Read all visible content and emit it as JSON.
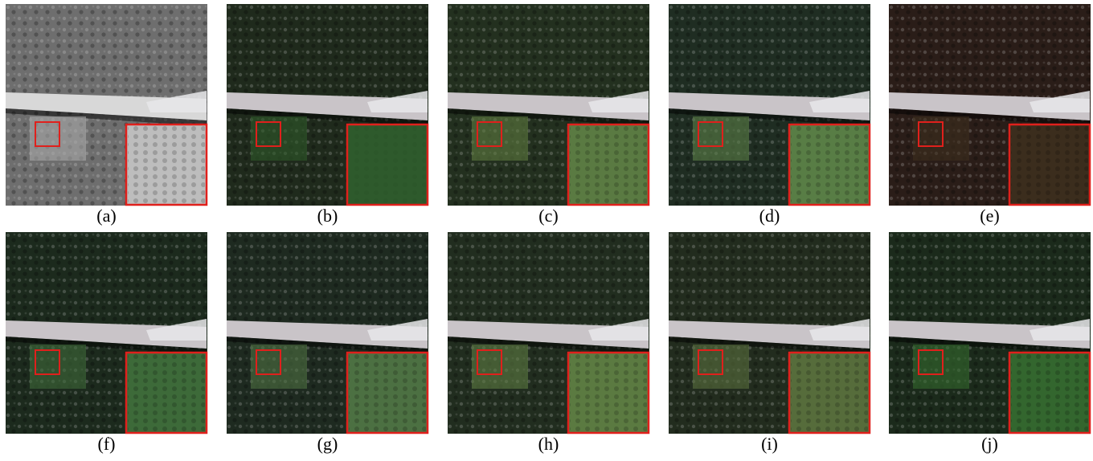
{
  "figure": {
    "panels": [
      {
        "label": "(a)"
      },
      {
        "label": "(b)"
      },
      {
        "label": "(c)"
      },
      {
        "label": "(d)"
      },
      {
        "label": "(e)"
      },
      {
        "label": "(f)"
      },
      {
        "label": "(g)"
      },
      {
        "label": "(h)"
      },
      {
        "label": "(i)"
      },
      {
        "label": "(j)"
      }
    ]
  }
}
